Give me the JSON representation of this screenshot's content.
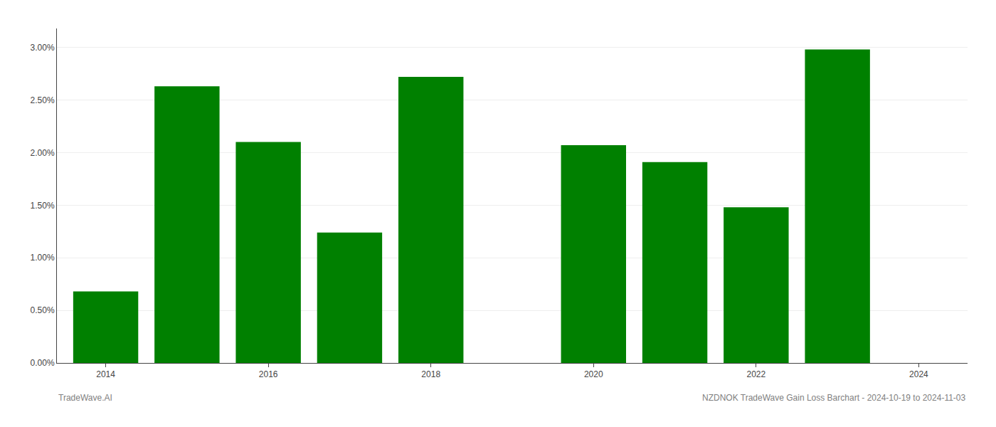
{
  "chart_data": {
    "type": "bar",
    "x": [
      2014,
      2015,
      2016,
      2017,
      2018,
      2020,
      2021,
      2022,
      2023
    ],
    "values": [
      0.0068,
      0.0263,
      0.021,
      0.0124,
      0.0272,
      0.0207,
      0.0191,
      0.0148,
      0.0298
    ],
    "color": "#008000",
    "xlim": [
      2013.4,
      2024.6
    ],
    "xticks": [
      2014,
      2016,
      2018,
      2020,
      2022,
      2024
    ],
    "ylim": [
      0,
      0.0318
    ],
    "yticks": [
      {
        "value": 0.0,
        "label": "0.00%"
      },
      {
        "value": 0.005,
        "label": "0.50%"
      },
      {
        "value": 0.01,
        "label": "1.00%"
      },
      {
        "value": 0.015,
        "label": "1.50%"
      },
      {
        "value": 0.02,
        "label": "2.00%"
      },
      {
        "value": 0.025,
        "label": "2.50%"
      },
      {
        "value": 0.03,
        "label": "3.00%"
      }
    ],
    "grid": true,
    "annotations": [
      "TradeWave.AI",
      "NZDNOK TradeWave Gain Loss Barchart - 2024-10-19 to 2024-11-03"
    ]
  }
}
